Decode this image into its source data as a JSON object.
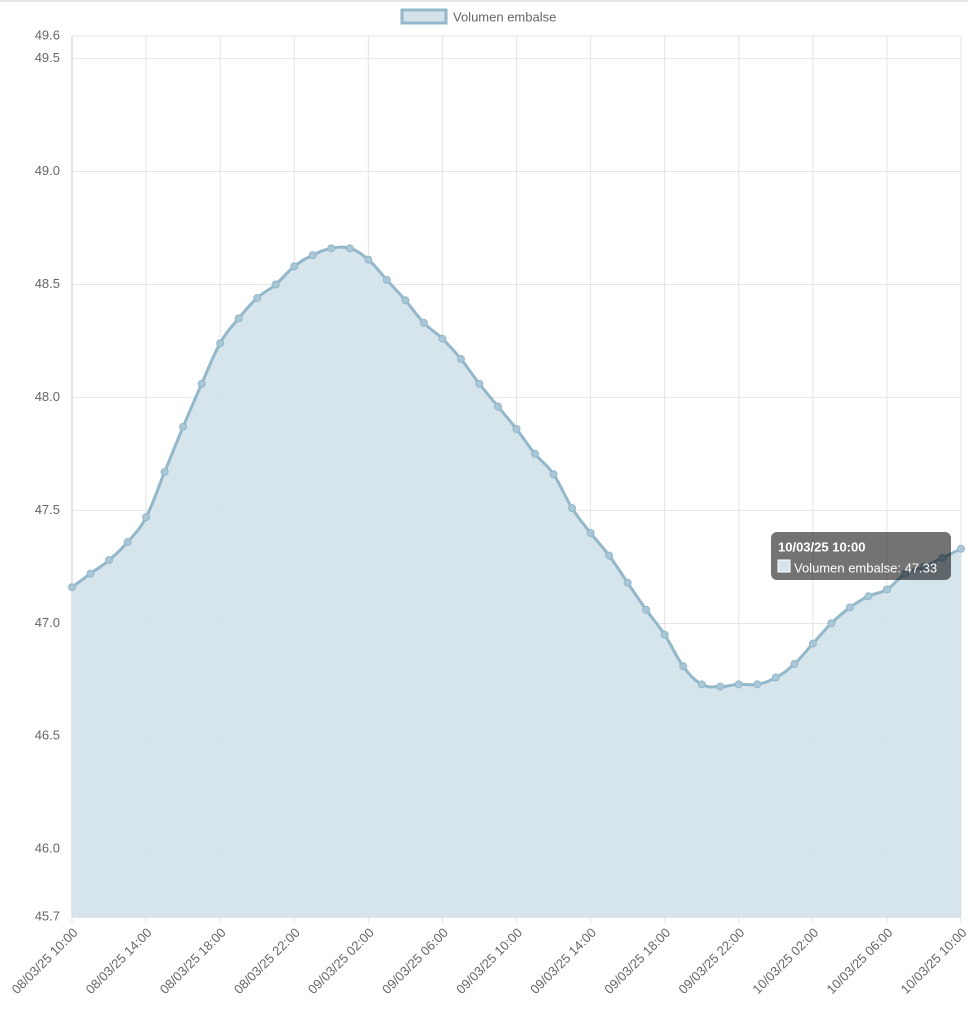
{
  "chart_data": {
    "type": "line",
    "categories": [
      "08/03/25 10:00",
      null,
      null,
      null,
      "08/03/25 14:00",
      null,
      null,
      null,
      "08/03/25 18:00",
      null,
      null,
      null,
      "08/03/25 22:00",
      null,
      null,
      null,
      "09/03/25 02:00",
      null,
      null,
      null,
      "09/03/25 06:00",
      null,
      null,
      null,
      "09/03/25 10:00",
      null,
      null,
      null,
      "09/03/25 14:00",
      null,
      null,
      null,
      "09/03/25 18:00",
      null,
      null,
      null,
      "09/03/25 22:00",
      null,
      null,
      null,
      "10/03/25 02:00",
      null,
      null,
      null,
      "10/03/25 06:00",
      null,
      null,
      null,
      "10/03/25 10:00"
    ],
    "series": [
      {
        "name": "Volumen embalse",
        "color": "#93b8cb",
        "fill": "#d4e3ea",
        "values": [
          47.16,
          47.22,
          47.28,
          47.36,
          47.47,
          47.67,
          47.87,
          48.06,
          48.24,
          48.35,
          48.44,
          48.5,
          48.58,
          48.63,
          48.66,
          48.66,
          48.61,
          48.52,
          48.43,
          48.33,
          48.26,
          48.17,
          48.06,
          47.96,
          47.86,
          47.75,
          47.66,
          47.51,
          47.4,
          47.3,
          47.18,
          47.06,
          46.95,
          46.81,
          46.73,
          46.72,
          46.73,
          46.73,
          46.76,
          46.82,
          46.91,
          47.0,
          47.07,
          47.12,
          47.15,
          47.22,
          47.25,
          47.29,
          47.33
        ]
      }
    ],
    "ylim": [
      45.7,
      49.6
    ],
    "yticks": [
      45.7,
      {
        "value": 46,
        "label": "46.0"
      },
      46.5,
      {
        "value": 47,
        "label": "47.0"
      },
      47.5,
      {
        "value": 48,
        "label": "48.0"
      },
      48.5,
      {
        "value": 49,
        "label": "49.0"
      },
      49.5,
      49.6
    ],
    "grid": true,
    "legend": "top",
    "tooltip": {
      "title": "10/03/25 10:00",
      "label": "Volumen embalse: 47.33"
    }
  }
}
